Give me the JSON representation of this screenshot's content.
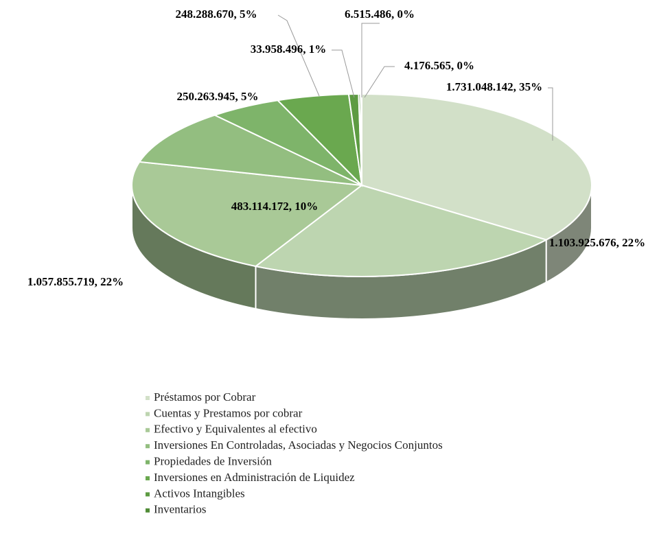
{
  "chart_data": {
    "type": "pie3d",
    "categories": [
      "Préstamos por Cobrar",
      "Cuentas y Prestamos por cobrar",
      "Efectivo y Equivalentes al efectivo",
      "Inversiones En Controladas, Asociadas y Negocios Conjuntos",
      "Propiedades de Inversión",
      "Inversiones en Administración de Liquidez",
      "Activos Intangibles",
      "Inventarios",
      null
    ],
    "values": [
      1731048142,
      1103925676,
      1057855719,
      483114172,
      250263945,
      248288670,
      33958496,
      6515486,
      4176565
    ],
    "value_labels": [
      "1.731.048.142, 35%",
      "1.103.925.676, 22%",
      "1.057.855.719, 22%",
      "483.114.172, 10%",
      "250.263.945, 5%",
      "248.288.670, 5%",
      "33.958.496, 1%",
      "6.515.486, 0%",
      "4.176.565, 0%"
    ],
    "colors": [
      "#d2e0c8",
      "#bdd5b0",
      "#a9c997",
      "#93be80",
      "#7eb46a",
      "#6aa84f",
      "#5d9b42",
      "#508c37",
      "#447d2d"
    ],
    "legend": "bottom"
  }
}
